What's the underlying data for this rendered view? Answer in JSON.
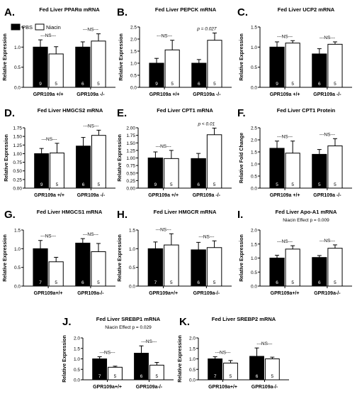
{
  "figure": {
    "legend": {
      "pbs": "PBS",
      "niacin": "Niacin"
    }
  },
  "chart_data": [
    {
      "panel": "A.",
      "type": "bar",
      "title_pre": "Fed Liver PPAR",
      "title_greek": "α",
      "title_post": " mRNA",
      "ylabel": "Relative Expression",
      "ylim": [
        0,
        1.5
      ],
      "yticks": [
        "0.0",
        "0.5",
        "1.0",
        "1.5"
      ],
      "categories": [
        "GPR109a +/+",
        "GPR109a -/-"
      ],
      "series": [
        {
          "name": "PBS",
          "color": "#000000",
          "values": [
            1.0,
            1.0
          ],
          "errors": [
            0.18,
            0.13
          ],
          "n": [
            "9",
            "6"
          ]
        },
        {
          "name": "Niacin",
          "color": "#ffffff",
          "values": [
            0.83,
            1.15
          ],
          "errors": [
            0.18,
            0.18
          ],
          "n": [
            "5",
            "5"
          ]
        }
      ],
      "annotations": [
        "---NS---",
        "---NS---"
      ]
    },
    {
      "panel": "B.",
      "type": "bar",
      "title": "Fed Liver PEPCK mRNA",
      "ylabel": "Relative Expression",
      "ylim": [
        0,
        2.5
      ],
      "yticks": [
        "0.0",
        "0.5",
        "1.0",
        "1.5",
        "2.0",
        "2.5"
      ],
      "categories": [
        "GPR109a +/+",
        "GPR109a -/-"
      ],
      "series": [
        {
          "name": "PBS",
          "color": "#000000",
          "values": [
            1.0,
            1.0
          ],
          "errors": [
            0.2,
            0.15
          ],
          "n": [
            "9",
            "6"
          ]
        },
        {
          "name": "Niacin",
          "color": "#ffffff",
          "values": [
            1.55,
            1.95
          ],
          "errors": [
            0.4,
            0.3
          ],
          "n": [
            "5",
            "5"
          ]
        }
      ],
      "annotations": [
        "---NS---",
        "p = 0.027"
      ]
    },
    {
      "panel": "C.",
      "type": "bar",
      "title": "Fed Liver UCP2 mRNA",
      "ylabel": "Relative Expression",
      "ylim": [
        0,
        1.5
      ],
      "yticks": [
        "0.0",
        "0.5",
        "1.0",
        "1.5"
      ],
      "categories": [
        "GPR109a +/+",
        "GPR109a -/-"
      ],
      "series": [
        {
          "name": "PBS",
          "color": "#000000",
          "values": [
            1.0,
            0.83
          ],
          "errors": [
            0.13,
            0.13
          ],
          "n": [
            "9",
            "6"
          ]
        },
        {
          "name": "Niacin",
          "color": "#ffffff",
          "values": [
            1.1,
            1.07
          ],
          "errors": [
            0.06,
            0.06
          ],
          "n": [
            "5",
            "5"
          ]
        }
      ],
      "annotations": [
        "---NS---",
        "---NS---"
      ]
    },
    {
      "panel": "D.",
      "type": "bar",
      "title": "Fed Liver HMGCS2 mRNA",
      "ylabel": "Relative Expression",
      "ylim": [
        0,
        1.75
      ],
      "yticks": [
        "0.00",
        "0.25",
        "0.50",
        "0.75",
        "1.00",
        "1.25",
        "1.50",
        "1.75"
      ],
      "categories": [
        "GPR109a +/+",
        "GPR109a -/-"
      ],
      "series": [
        {
          "name": "PBS",
          "color": "#000000",
          "values": [
            1.0,
            1.22
          ],
          "errors": [
            0.15,
            0.25
          ],
          "n": [
            "9",
            "6"
          ]
        },
        {
          "name": "Niacin",
          "color": "#ffffff",
          "values": [
            1.02,
            1.53
          ],
          "errors": [
            0.28,
            0.15
          ],
          "n": [
            "5",
            "5"
          ]
        }
      ],
      "annotations": [
        "---NS---",
        "---NS---"
      ]
    },
    {
      "panel": "E.",
      "type": "bar",
      "title": "Fed Liver CPT1 mRNA",
      "ylabel": "Relative Expression",
      "ylim": [
        0,
        2.0
      ],
      "yticks": [
        "0.00",
        "0.25",
        "0.50",
        "0.75",
        "1.00",
        "1.25",
        "1.50",
        "1.75",
        "2.00"
      ],
      "categories": [
        "GPR109a +/+",
        "GPR109a -/-"
      ],
      "series": [
        {
          "name": "PBS",
          "color": "#000000",
          "values": [
            1.0,
            0.98
          ],
          "errors": [
            0.2,
            0.17
          ],
          "n": [
            "9",
            "6"
          ]
        },
        {
          "name": "Niacin",
          "color": "#ffffff",
          "values": [
            0.98,
            1.77
          ],
          "errors": [
            0.27,
            0.22
          ],
          "n": [
            "5",
            "5"
          ]
        }
      ],
      "annotations": [
        "---NS---",
        "p < 0.01"
      ]
    },
    {
      "panel": "F.",
      "type": "bar",
      "title": "Fed Liver CPT1 Protein",
      "ylabel": "Relative Fold Change",
      "ylim": [
        0,
        2.5
      ],
      "yticks": [
        "0.0",
        "0.5",
        "1.0",
        "1.5",
        "2.0",
        "2.5"
      ],
      "categories": [
        "GPR109a +/+",
        "GPR109a -/-"
      ],
      "series": [
        {
          "name": "PBS",
          "color": "#000000",
          "values": [
            1.65,
            1.4
          ],
          "errors": [
            0.3,
            0.2
          ],
          "n": [
            "5",
            "5"
          ]
        },
        {
          "name": "Niacin",
          "color": "#ffffff",
          "values": [
            1.45,
            1.75
          ],
          "errors": [
            0.5,
            0.3
          ],
          "n": [
            "5",
            "5"
          ]
        }
      ],
      "annotations": [
        "---NS---",
        "---NS---"
      ]
    },
    {
      "panel": "G.",
      "type": "bar",
      "title": "Fed Liver HMGCS1 mRNA",
      "ylabel": "Relative Expression",
      "ylim": [
        0,
        1.5
      ],
      "yticks": [
        "0.0",
        "0.5",
        "1.0",
        "1.5"
      ],
      "categories": [
        "GPR109a+/+",
        "GPR109a-/-"
      ],
      "series": [
        {
          "name": "PBS",
          "color": "#000000",
          "values": [
            1.0,
            1.15
          ],
          "errors": [
            0.22,
            0.12
          ],
          "n": [
            "7",
            "6"
          ]
        },
        {
          "name": "Niacin",
          "color": "#ffffff",
          "values": [
            0.65,
            0.92
          ],
          "errors": [
            0.12,
            0.22
          ],
          "n": [
            "5",
            "5"
          ]
        }
      ],
      "annotations": [
        "---NS---",
        "---NS---"
      ]
    },
    {
      "panel": "H.",
      "type": "bar",
      "title": "Fed Liver HMGCR mRNA",
      "ylabel": "Relative Expression",
      "ylim": [
        0,
        1.5
      ],
      "yticks": [
        "0.0",
        "0.5",
        "1.0",
        "1.5"
      ],
      "categories": [
        "GPR109a+/+",
        "GPR109a-/-"
      ],
      "series": [
        {
          "name": "PBS",
          "color": "#000000",
          "values": [
            1.0,
            0.97
          ],
          "errors": [
            0.18,
            0.2
          ],
          "n": [
            "7",
            "6"
          ]
        },
        {
          "name": "Niacin",
          "color": "#ffffff",
          "values": [
            1.1,
            1.03
          ],
          "errors": [
            0.3,
            0.18
          ],
          "n": [
            "5",
            "5"
          ]
        }
      ],
      "annotations": [
        "---NS---",
        "---NS---"
      ]
    },
    {
      "panel": "I.",
      "type": "bar",
      "title": "Fed Liver Apo-A1 mRNA",
      "subtitle": "Niacin Effect p = 0.009",
      "ylabel": "Relative Expression",
      "ylim": [
        0,
        2.0
      ],
      "yticks": [
        "0.0",
        "0.5",
        "1.0",
        "1.5",
        "2.0"
      ],
      "categories": [
        "GPR109a+/+",
        "GPR109a-/-"
      ],
      "series": [
        {
          "name": "PBS",
          "color": "#000000",
          "values": [
            1.0,
            1.02
          ],
          "errors": [
            0.1,
            0.07
          ],
          "n": [
            "6",
            "6"
          ]
        },
        {
          "name": "Niacin",
          "color": "#ffffff",
          "values": [
            1.32,
            1.35
          ],
          "errors": [
            0.12,
            0.12
          ],
          "n": [
            "5",
            "5"
          ]
        }
      ],
      "annotations": [
        "---NS---",
        "---NS---"
      ]
    },
    {
      "panel": "J.",
      "type": "bar",
      "title": "Fed Liver SREBP1 mRNA",
      "subtitle": "Niacin Effect p = 0.029",
      "ylabel": "Relative Expression",
      "ylim": [
        0,
        2.0
      ],
      "yticks": [
        "0.0",
        "0.5",
        "1.0",
        "1.5",
        "2.0"
      ],
      "categories": [
        "GPR109a+/+",
        "GPR109a-/-"
      ],
      "series": [
        {
          "name": "PBS",
          "color": "#000000",
          "values": [
            1.0,
            1.27
          ],
          "errors": [
            0.1,
            0.35
          ],
          "n": [
            "7",
            "6"
          ]
        },
        {
          "name": "Niacin",
          "color": "#ffffff",
          "values": [
            0.6,
            0.7
          ],
          "errors": [
            0.05,
            0.13
          ],
          "n": [
            "5",
            "5"
          ]
        }
      ],
      "annotations": [
        "---NS---",
        "---NS---"
      ]
    },
    {
      "panel": "K.",
      "type": "bar",
      "title": "Fed Liver SREBP2 mRNA",
      "ylabel": "Relative Expression",
      "ylim": [
        0,
        2.0
      ],
      "yticks": [
        "0.0",
        "0.5",
        "1.0",
        "1.5",
        "2.0"
      ],
      "categories": [
        "GPR109a+/+",
        "GPR109a-/-"
      ],
      "series": [
        {
          "name": "PBS",
          "color": "#000000",
          "values": [
            1.0,
            1.12
          ],
          "errors": [
            0.1,
            0.4
          ],
          "n": [
            "7",
            "6"
          ]
        },
        {
          "name": "Niacin",
          "color": "#ffffff",
          "values": [
            0.8,
            1.0
          ],
          "errors": [
            0.12,
            0.08
          ],
          "n": [
            "5",
            "5"
          ]
        }
      ],
      "annotations": [
        "---NS---",
        "---NS---"
      ]
    }
  ]
}
